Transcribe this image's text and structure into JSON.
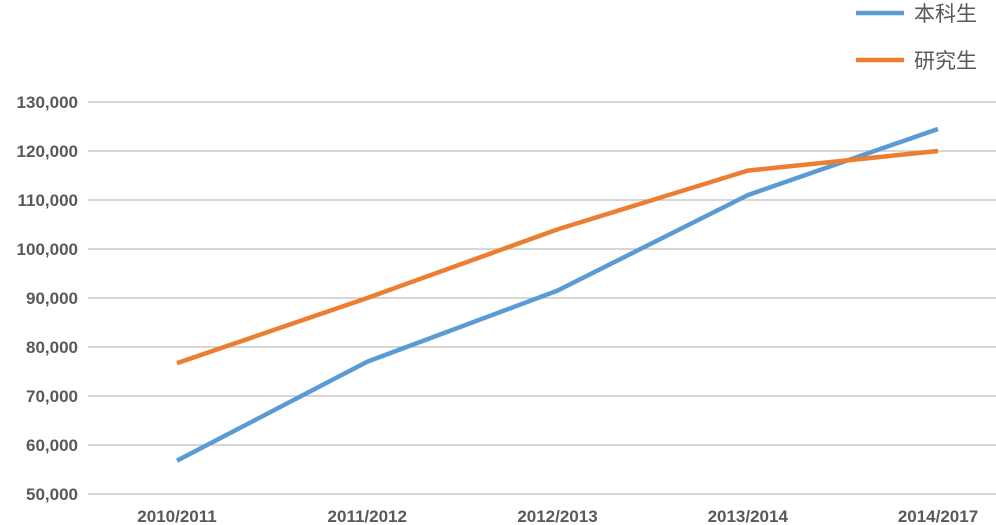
{
  "chart_data": {
    "type": "line",
    "categories": [
      "2010/2011",
      "2011/2012",
      "2012/2013",
      "2013/2014",
      "2014/2017"
    ],
    "series": [
      {
        "name": "本科生",
        "values": [
          56800,
          77000,
          91500,
          111000,
          124500
        ],
        "color": "#5b9bd5"
      },
      {
        "name": "研究生",
        "values": [
          76700,
          90000,
          104000,
          116000,
          120000
        ],
        "color": "#ed7d31"
      }
    ],
    "ylim": [
      50000,
      130000
    ],
    "yticks": [
      "50,000",
      "60,000",
      "70,000",
      "80,000",
      "90,000",
      "100,000",
      "110,000",
      "120,000",
      "130,000"
    ],
    "ytick_values": [
      50000,
      60000,
      70000,
      80000,
      90000,
      100000,
      110000,
      120000,
      130000
    ],
    "grid": true,
    "legend": "top-right",
    "gridline_color": "#bfbfbf"
  }
}
